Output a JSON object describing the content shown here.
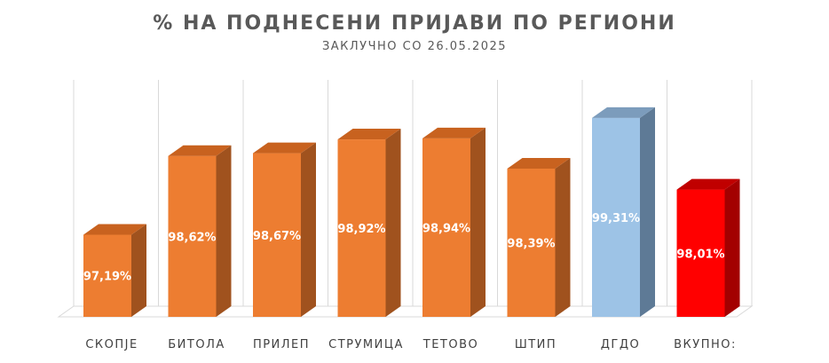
{
  "chart_data": {
    "type": "bar",
    "title": "% НА ПОДНЕСЕНИ ПРИЈАВИ ПО РЕГИОНИ",
    "subtitle": "ЗАКЛУЧНО СО 26.05.2025",
    "categories": [
      "СКОПЈЕ",
      "БИТОЛА",
      "ПРИЛЕП",
      "СТРУМИЦА",
      "ТЕТОВО",
      "ШТИП",
      "ДГДО",
      "ВКУПНО:"
    ],
    "values": [
      97.19,
      98.62,
      98.67,
      98.92,
      98.94,
      98.39,
      99.31,
      98.01
    ],
    "value_labels": [
      "97,19%",
      "98,62%",
      "98,67%",
      "98,92%",
      "98,94%",
      "98,39%",
      "99,31%",
      "98,01%"
    ],
    "ylim": [
      95.7,
      100.0
    ],
    "grid": true,
    "colors": {
      "default": {
        "front": "#ED7D31",
        "side": "#A0521E",
        "top": "#C8621F"
      },
      "ДГДО": {
        "front": "#9DC3E6",
        "side": "#5E7A96",
        "top": "#7C9CBC"
      },
      "ВКУПНО:": {
        "front": "#FF0000",
        "side": "#A30000",
        "top": "#C00000"
      }
    }
  }
}
